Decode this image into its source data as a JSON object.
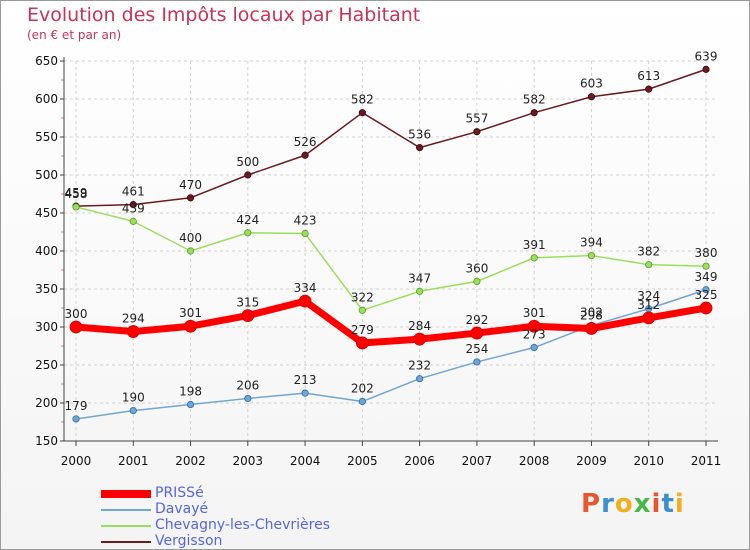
{
  "title": "Evolution des Impôts locaux par Habitant",
  "subtitle": "(en € et par an)",
  "logo_text": "Proxiti",
  "chart_data": {
    "type": "line",
    "x": [
      "2000",
      "2001",
      "2002",
      "2003",
      "2004",
      "2005",
      "2006",
      "2007",
      "2008",
      "2009",
      "2010",
      "2011"
    ],
    "ylim": [
      150,
      650
    ],
    "yticks": [
      150,
      200,
      250,
      300,
      350,
      400,
      450,
      500,
      550,
      600,
      650
    ],
    "grid": true,
    "legend_position": "bottom-left",
    "series": [
      {
        "name": "Vergisson",
        "color": "#6b1a1e",
        "values": [
          459,
          461,
          470,
          500,
          526,
          582,
          536,
          557,
          582,
          603,
          613,
          639
        ]
      },
      {
        "name": "Chevagny-les-Chevrières",
        "color": "#99e05a",
        "values": [
          458,
          439,
          400,
          424,
          423,
          322,
          347,
          360,
          391,
          394,
          382,
          380
        ]
      },
      {
        "name": "Davayé",
        "color": "#6ea6d6",
        "values": [
          179,
          190,
          198,
          206,
          213,
          202,
          232,
          254,
          273,
          302,
          324,
          349
        ]
      },
      {
        "name": "PRISSé",
        "color": "#ff0000",
        "values": [
          300,
          294,
          301,
          315,
          334,
          279,
          284,
          292,
          301,
          298,
          312,
          325
        ]
      }
    ],
    "legend": [
      "PRISSé",
      "Davayé",
      "Chevagny-les-Chevrières",
      "Vergisson"
    ]
  }
}
